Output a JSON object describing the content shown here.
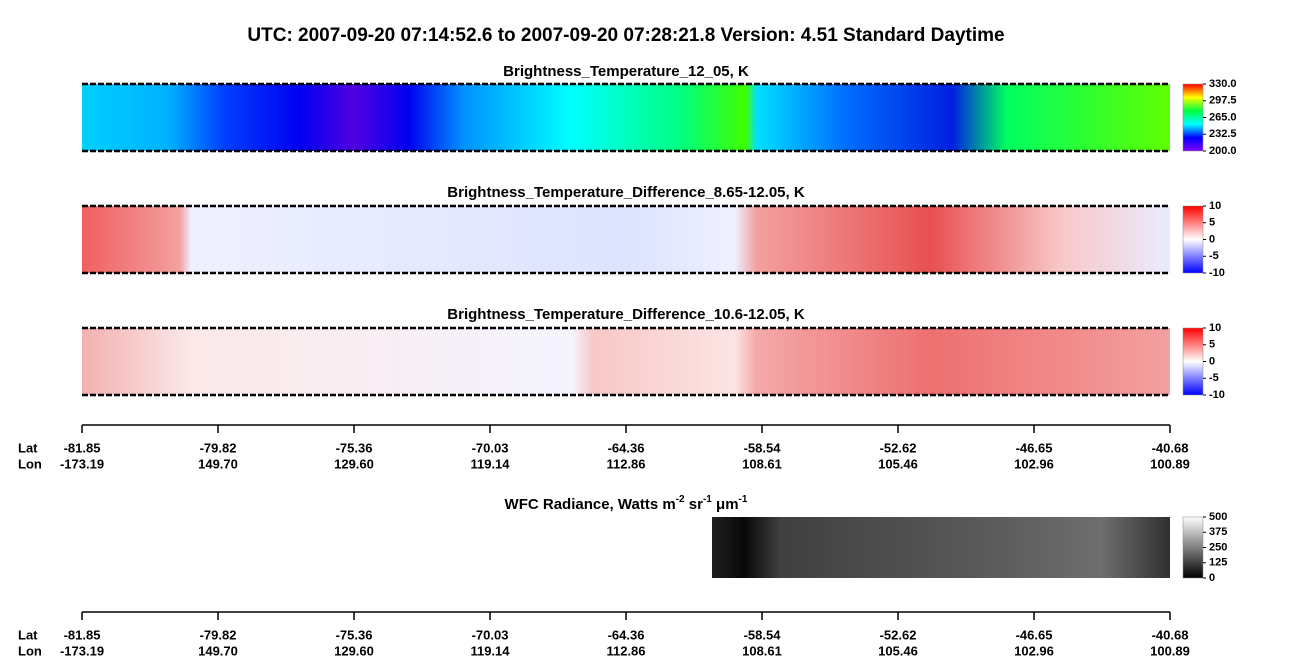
{
  "header": {
    "title": "UTC:  2007-09-20   07:14:52.6  to  2007-09-20   07:28:21.8    Version: 4.51  Standard Daytime"
  },
  "panels": [
    {
      "title": "Brightness_Temperature_12_05, K",
      "clim": [
        200,
        330
      ],
      "colors": [
        "#8000ff",
        "#0000ff",
        "#00ffff",
        "#00ff40",
        "#ffff00",
        "#ff0000"
      ],
      "ticks": [
        {
          "value": 330,
          "label": "330.0"
        },
        {
          "value": 297.5,
          "label": "297.5"
        },
        {
          "value": 265,
          "label": "265.0"
        },
        {
          "value": 232.5,
          "label": "232.5"
        },
        {
          "value": 200,
          "label": "200.0"
        }
      ]
    },
    {
      "title": "Brightness_Temperature_Difference_8.65-12.05, K",
      "clim": [
        -10,
        10
      ],
      "colors": [
        "#0000ff",
        "#ffffff",
        "#ff0000"
      ],
      "ticks": [
        10,
        5,
        0,
        -5,
        -10
      ]
    },
    {
      "title": "Brightness_Temperature_Difference_10.6-12.05, K",
      "clim": [
        -10,
        10
      ],
      "colors": [
        "#0000ff",
        "#ffffff",
        "#ff0000"
      ],
      "ticks": [
        10,
        5,
        0,
        -5,
        -10
      ]
    },
    {
      "title_parts": [
        {
          "text": "WFC Radiance, Watts m"
        },
        {
          "text": "-2",
          "sup": true
        },
        {
          "text": " sr"
        },
        {
          "text": "-1",
          "sup": true
        },
        {
          "text": " μm"
        },
        {
          "text": "-1",
          "sup": true
        }
      ],
      "clim": [
        0,
        500
      ],
      "colors": [
        "#000000",
        "#ffffff"
      ],
      "ticks": [
        500,
        375,
        250,
        125,
        0
      ]
    }
  ],
  "axes": [
    {
      "lat_label": "Lat",
      "lon_label": "Lon",
      "lat": [
        -81.85,
        -79.82,
        -75.36,
        -70.03,
        -64.36,
        -58.54,
        -52.62,
        -46.65,
        -40.68
      ],
      "lon": [
        -173.19,
        {
          "value": 149.7,
          "label": "149.70"
        },
        {
          "value": 129.6,
          "label": "129.60"
        },
        119.14,
        112.86,
        108.61,
        105.46,
        102.96,
        100.89
      ]
    },
    {
      "lat_label": "Lat",
      "lon_label": "Lon",
      "lat": [
        -81.85,
        -79.82,
        -75.36,
        -70.03,
        -64.36,
        -58.54,
        -52.62,
        -46.65,
        -40.68
      ],
      "lon": [
        -173.19,
        {
          "value": 149.7,
          "label": "149.70"
        },
        {
          "value": 129.6,
          "label": "129.60"
        },
        119.14,
        112.86,
        108.61,
        105.46,
        102.96,
        100.89
      ]
    }
  ]
}
